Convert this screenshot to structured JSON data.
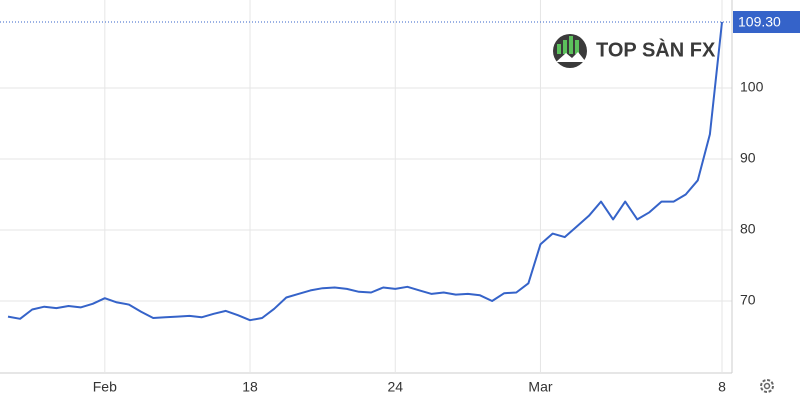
{
  "chart_data": {
    "type": "line",
    "watermark": "TOP SÀN FX",
    "color": "#3563c9",
    "categories": [
      null,
      null,
      null,
      null,
      null,
      null,
      null,
      null,
      "Feb",
      null,
      null,
      null,
      null,
      null,
      null,
      null,
      null,
      null,
      null,
      null,
      "18",
      null,
      null,
      null,
      null,
      null,
      null,
      null,
      null,
      null,
      null,
      null,
      "24",
      null,
      null,
      null,
      null,
      null,
      null,
      null,
      null,
      null,
      null,
      null,
      "Mar",
      null,
      null,
      null,
      null,
      null,
      null,
      null,
      null,
      null,
      null,
      null,
      null,
      null,
      null,
      "8"
    ],
    "values": [
      67.8,
      67.5,
      68.8,
      69.2,
      69.0,
      69.3,
      69.1,
      69.6,
      70.4,
      69.8,
      69.5,
      68.5,
      67.6,
      67.7,
      67.8,
      67.9,
      67.7,
      68.2,
      68.6,
      68.0,
      67.3,
      67.6,
      68.9,
      70.5,
      71.0,
      71.5,
      71.8,
      71.9,
      71.7,
      71.3,
      71.2,
      71.9,
      71.7,
      72.0,
      71.5,
      71.0,
      71.2,
      70.9,
      71.0,
      70.8,
      70.0,
      71.1,
      71.2,
      72.5,
      78.0,
      79.5,
      79.0,
      80.5,
      82.0,
      84.0,
      81.5,
      84.0,
      81.5,
      82.5,
      84.0,
      84.0,
      85.0,
      87.0,
      93.5,
      109.3
    ],
    "ylim": [
      60,
      112.4
    ],
    "yticks": [
      70,
      80,
      90,
      100
    ],
    "grid": true,
    "annotations": [
      {
        "value": 109.3,
        "label": "109.30"
      }
    ]
  }
}
